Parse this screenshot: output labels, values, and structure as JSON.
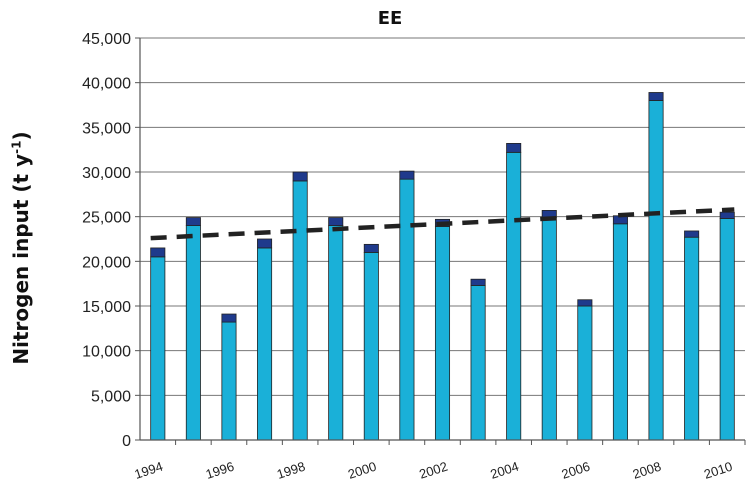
{
  "chart_data": {
    "type": "bar",
    "title": "EE",
    "ylabel": "Nitrogen input (t y⁻¹)",
    "ylabel_main": "Nitrogen input (t y",
    "ylabel_sup": "-1",
    "ylabel_end": ")",
    "xlabel": "",
    "ylim": [
      0,
      45000
    ],
    "yticks": [
      "0",
      "5,000",
      "10,000",
      "15,000",
      "20,000",
      "25,000",
      "30,000",
      "35,000",
      "40,000",
      "45,000"
    ],
    "x_tick_labels": [
      "1994",
      "1996",
      "1998",
      "2000",
      "2002",
      "2004",
      "2006",
      "2008",
      "2010"
    ],
    "categories": [
      "1994",
      "1995",
      "1996",
      "1997",
      "1998",
      "1999",
      "2000",
      "2001",
      "2002",
      "2003",
      "2004",
      "2005",
      "2006",
      "2007",
      "2008",
      "2009",
      "2010"
    ],
    "stacked": true,
    "series": [
      {
        "color": "#1ab0d8",
        "values": [
          20500,
          24000,
          13200,
          21500,
          29000,
          24000,
          21000,
          29200,
          23900,
          17300,
          32200,
          24900,
          15000,
          24200,
          38000,
          22700,
          24800
        ]
      },
      {
        "color": "#1f3a8c",
        "values": [
          1000,
          900,
          900,
          1000,
          1000,
          900,
          900,
          900,
          800,
          700,
          1000,
          800,
          700,
          900,
          900,
          700,
          700
        ]
      }
    ],
    "trend": {
      "style": "dashed",
      "color": "#222222",
      "start": 22600,
      "end": 25800
    },
    "grid": true,
    "legend": "none"
  }
}
